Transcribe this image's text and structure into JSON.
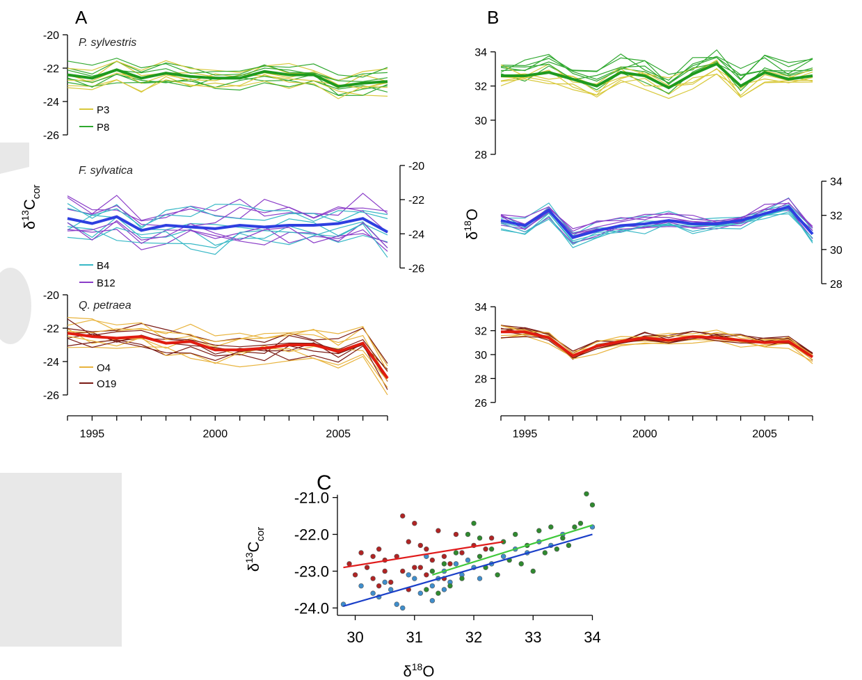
{
  "figure": {
    "panel_labels": [
      "A",
      "B",
      "C"
    ],
    "species": [
      "P. sylvestris",
      "F. sylvatica",
      "Q. petraea"
    ]
  },
  "axes": {
    "d13c_prefix": "δ",
    "d13c_sup": "13",
    "d13c_main": "C",
    "d13c_sub": "cor",
    "d18o_prefix": "δ",
    "d18o_sup": "18",
    "d18o_main": "O",
    "year_ticks": [
      "1995",
      "2000",
      "2005"
    ]
  },
  "colors": {
    "P3": "#d8c83a",
    "P8": "#2fa82f",
    "pine_mean": "#1f9a1f",
    "B4": "#37b8c6",
    "B12": "#8a3cc8",
    "beech_mean": "#2e3fe0",
    "O4": "#e8b33c",
    "O19": "#7a1a14",
    "oak_mean": "#e01c10",
    "scatter_red": "#b02424",
    "scatter_blue": "#3f8ecc",
    "scatter_green": "#2f8a2f",
    "reg_red": "#e01c1c",
    "reg_blue": "#1a3fc8",
    "reg_green": "#3fc83a"
  },
  "chart_data": [
    {
      "id": "A1",
      "type": "line",
      "title": "P. sylvestris",
      "ylabel": "δ13Ccor",
      "ylim": [
        -27,
        -20
      ],
      "yticks": [
        -20,
        -22,
        -24,
        -26
      ],
      "x": [
        1994,
        1995,
        1996,
        1997,
        1998,
        1999,
        2000,
        2001,
        2002,
        2003,
        2004,
        2005,
        2006,
        2007
      ],
      "legend": [
        {
          "name": "P3",
          "color": "#d8c83a"
        },
        {
          "name": "P8",
          "color": "#2fa82f"
        }
      ],
      "mean": [
        -22.4,
        -22.6,
        -22.1,
        -22.6,
        -22.3,
        -22.5,
        -22.6,
        -22.6,
        -22.2,
        -22.4,
        -22.4,
        -23.1,
        -22.9,
        -22.8
      ]
    },
    {
      "id": "A2",
      "type": "line",
      "title": "F. sylvatica",
      "ylim": [
        -27,
        -20
      ],
      "yticks": [
        -20,
        -22,
        -24,
        -26
      ],
      "x": [
        1994,
        1995,
        1996,
        1997,
        1998,
        1999,
        2000,
        2001,
        2002,
        2003,
        2004,
        2005,
        2006,
        2007
      ],
      "legend": [
        {
          "name": "B4",
          "color": "#37b8c6"
        },
        {
          "name": "B12",
          "color": "#8a3cc8"
        }
      ],
      "mean": [
        -23.1,
        -23.4,
        -23.0,
        -23.8,
        -23.5,
        -23.6,
        -23.7,
        -23.5,
        -23.6,
        -23.5,
        -23.5,
        -23.4,
        -23.1,
        -23.9
      ]
    },
    {
      "id": "A3",
      "type": "line",
      "title": "Q. petraea",
      "ylim": [
        -27,
        -20
      ],
      "yticks": [
        -20,
        -22,
        -24,
        -26
      ],
      "x": [
        1994,
        1995,
        1996,
        1997,
        1998,
        1999,
        2000,
        2001,
        2002,
        2003,
        2004,
        2005,
        2006,
        2007
      ],
      "legend": [
        {
          "name": "O4",
          "color": "#e8b33c"
        },
        {
          "name": "O19",
          "color": "#7a1a14"
        }
      ],
      "mean": [
        -22.3,
        -22.5,
        -22.6,
        -22.5,
        -22.9,
        -22.8,
        -23.3,
        -23.3,
        -23.2,
        -23.0,
        -23.0,
        -23.4,
        -22.9,
        -25.0
      ]
    },
    {
      "id": "B1",
      "type": "line",
      "ylim": [
        28,
        35
      ],
      "yticks": [
        28,
        30,
        32,
        34
      ],
      "x": [
        1994,
        1995,
        1996,
        1997,
        1998,
        1999,
        2000,
        2001,
        2002,
        2003,
        2004,
        2005,
        2006,
        2007
      ],
      "mean": [
        32.6,
        32.6,
        32.8,
        32.4,
        32.0,
        32.8,
        32.6,
        31.9,
        32.7,
        33.3,
        32.0,
        32.8,
        32.4,
        32.6
      ]
    },
    {
      "id": "B2",
      "type": "line",
      "ylabel": "δ18O",
      "ylim": [
        28,
        35
      ],
      "yticks": [
        28,
        30,
        32,
        34
      ],
      "x": [
        1994,
        1995,
        1996,
        1997,
        1998,
        1999,
        2000,
        2001,
        2002,
        2003,
        2004,
        2005,
        2006,
        2007
      ],
      "mean": [
        31.7,
        31.4,
        32.3,
        30.7,
        31.1,
        31.4,
        31.5,
        31.7,
        31.5,
        31.5,
        31.7,
        32.1,
        32.5,
        30.9
      ]
    },
    {
      "id": "B3",
      "type": "line",
      "ylim": [
        25,
        35
      ],
      "yticks": [
        26,
        28,
        30,
        32,
        34
      ],
      "x": [
        1994,
        1995,
        1996,
        1997,
        1998,
        1999,
        2000,
        2001,
        2002,
        2003,
        2004,
        2005,
        2006,
        2007
      ],
      "mean": [
        31.9,
        31.9,
        31.4,
        29.9,
        30.7,
        31.1,
        31.4,
        31.2,
        31.5,
        31.4,
        31.2,
        31.0,
        31.1,
        29.8
      ]
    },
    {
      "id": "C",
      "type": "scatter",
      "xlabel": "δ18O",
      "ylabel": "δ13Ccor",
      "xlim": [
        29.7,
        34.1
      ],
      "ylim": [
        -24.2,
        -20.8
      ],
      "xticks": [
        30,
        31,
        32,
        33,
        34
      ],
      "yticks": [
        -21.0,
        -22.0,
        -23.0,
        -24.0
      ],
      "series": [
        {
          "color": "#b02424",
          "points": [
            [
              29.9,
              -22.8
            ],
            [
              30.0,
              -23.1
            ],
            [
              30.1,
              -22.5
            ],
            [
              30.2,
              -22.9
            ],
            [
              30.3,
              -22.6
            ],
            [
              30.3,
              -23.2
            ],
            [
              30.4,
              -22.4
            ],
            [
              30.5,
              -23.0
            ],
            [
              30.5,
              -22.7
            ],
            [
              30.6,
              -23.3
            ],
            [
              30.7,
              -22.6
            ],
            [
              30.8,
              -23.0
            ],
            [
              30.8,
              -21.5
            ],
            [
              30.9,
              -22.2
            ],
            [
              31.0,
              -21.7
            ],
            [
              31.0,
              -22.9
            ],
            [
              31.1,
              -22.3
            ],
            [
              31.2,
              -23.1
            ],
            [
              31.2,
              -22.4
            ],
            [
              31.3,
              -22.7
            ],
            [
              31.4,
              -21.9
            ],
            [
              31.5,
              -22.6
            ],
            [
              31.5,
              -23.2
            ],
            [
              31.6,
              -22.8
            ],
            [
              31.7,
              -22.0
            ],
            [
              31.8,
              -22.5
            ],
            [
              32.0,
              -22.3
            ],
            [
              32.2,
              -22.4
            ],
            [
              32.3,
              -22.1
            ],
            [
              30.4,
              -23.4
            ],
            [
              31.1,
              -22.9
            ],
            [
              30.9,
              -23.5
            ]
          ],
          "fit": [
            [
              29.8,
              -22.9
            ],
            [
              32.5,
              -22.2
            ]
          ]
        },
        {
          "color": "#3f8ecc",
          "points": [
            [
              29.8,
              -23.9
            ],
            [
              30.1,
              -23.4
            ],
            [
              30.3,
              -23.6
            ],
            [
              30.4,
              -23.7
            ],
            [
              30.6,
              -23.5
            ],
            [
              30.7,
              -23.9
            ],
            [
              30.8,
              -24.0
            ],
            [
              30.9,
              -23.1
            ],
            [
              31.0,
              -23.2
            ],
            [
              31.1,
              -23.6
            ],
            [
              31.2,
              -22.6
            ],
            [
              31.3,
              -23.4
            ],
            [
              31.4,
              -23.2
            ],
            [
              31.5,
              -23.0
            ],
            [
              31.5,
              -23.5
            ],
            [
              31.6,
              -23.3
            ],
            [
              31.7,
              -22.8
            ],
            [
              31.8,
              -23.1
            ],
            [
              31.9,
              -22.7
            ],
            [
              32.0,
              -22.9
            ],
            [
              32.1,
              -23.2
            ],
            [
              32.3,
              -22.8
            ],
            [
              32.5,
              -22.6
            ],
            [
              32.7,
              -22.4
            ],
            [
              32.9,
              -22.5
            ],
            [
              33.1,
              -22.2
            ],
            [
              33.3,
              -22.3
            ],
            [
              33.5,
              -22.0
            ],
            [
              34.0,
              -21.8
            ],
            [
              31.3,
              -23.8
            ],
            [
              30.5,
              -23.3
            ]
          ],
          "fit": [
            [
              29.8,
              -23.95
            ],
            [
              34.0,
              -22.0
            ]
          ]
        },
        {
          "color": "#2f8a2f",
          "points": [
            [
              31.2,
              -23.5
            ],
            [
              31.3,
              -23.0
            ],
            [
              31.5,
              -22.8
            ],
            [
              31.6,
              -23.4
            ],
            [
              31.7,
              -22.5
            ],
            [
              31.8,
              -23.2
            ],
            [
              31.9,
              -22.0
            ],
            [
              32.0,
              -21.7
            ],
            [
              32.1,
              -22.6
            ],
            [
              32.2,
              -22.9
            ],
            [
              32.3,
              -22.4
            ],
            [
              32.4,
              -23.1
            ],
            [
              32.5,
              -22.2
            ],
            [
              32.6,
              -22.7
            ],
            [
              32.7,
              -22.0
            ],
            [
              32.8,
              -22.8
            ],
            [
              32.9,
              -22.3
            ],
            [
              33.0,
              -23.0
            ],
            [
              33.1,
              -21.9
            ],
            [
              33.2,
              -22.5
            ],
            [
              33.3,
              -21.8
            ],
            [
              33.4,
              -22.4
            ],
            [
              33.5,
              -22.1
            ],
            [
              33.6,
              -22.3
            ],
            [
              33.7,
              -21.8
            ],
            [
              33.8,
              -21.7
            ],
            [
              33.9,
              -20.9
            ],
            [
              34.0,
              -21.2
            ],
            [
              32.1,
              -22.1
            ],
            [
              31.4,
              -23.6
            ]
          ],
          "fit": [
            [
              31.3,
              -23.1
            ],
            [
              34.0,
              -21.75
            ]
          ]
        }
      ]
    }
  ]
}
